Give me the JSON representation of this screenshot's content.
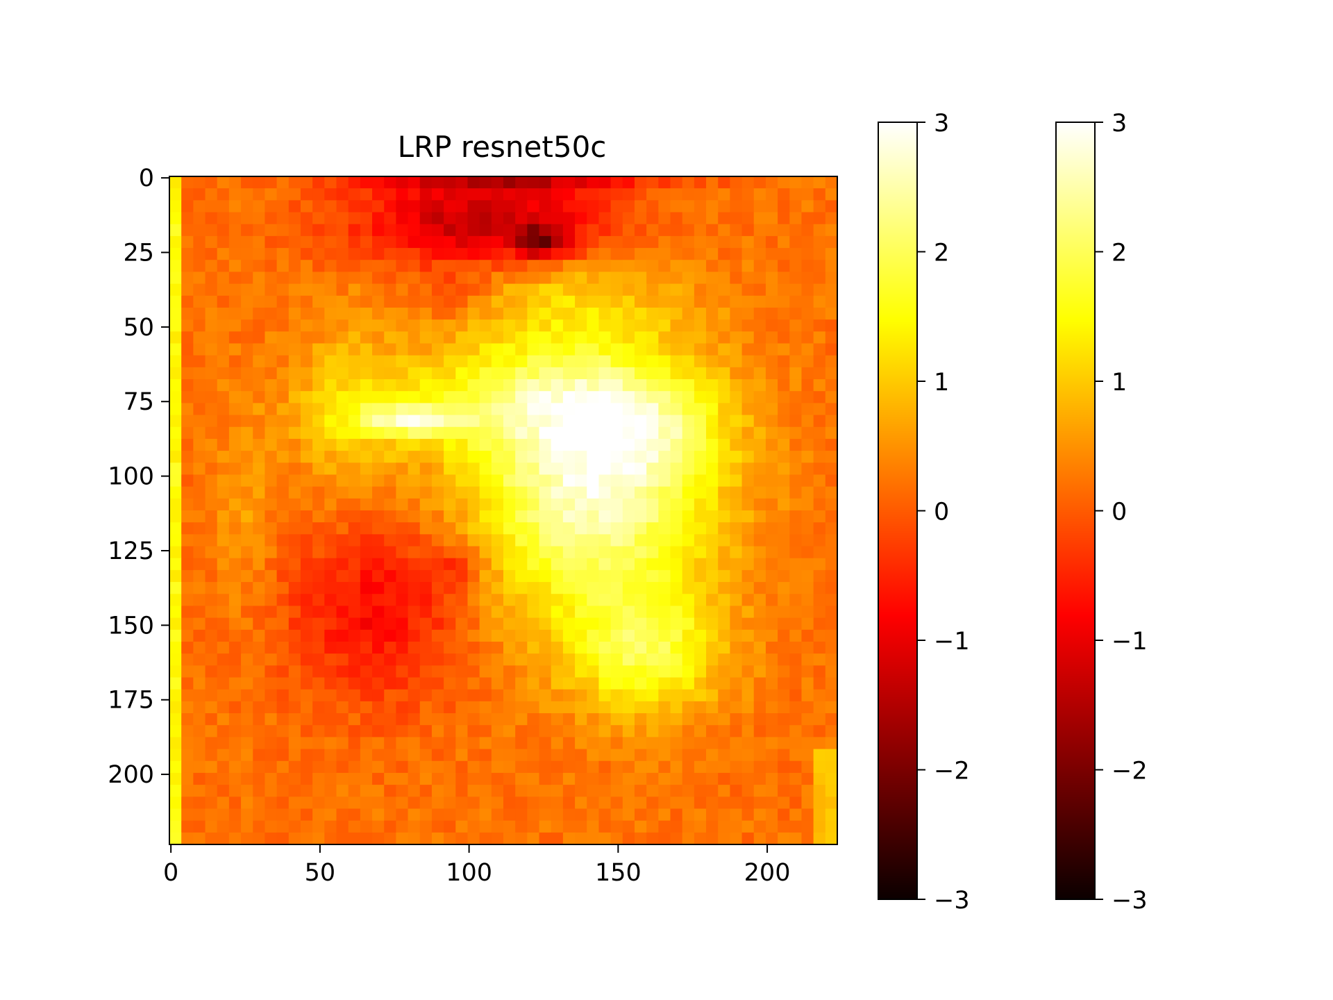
{
  "chart_data": {
    "type": "heatmap",
    "title": "LRP resnet50c",
    "xlabel": "",
    "ylabel": "",
    "image_size": [
      224,
      224
    ],
    "grid": false,
    "colormap": "hot",
    "value_range": [
      -3,
      3
    ],
    "x_ticks": [
      0,
      50,
      100,
      150,
      200
    ],
    "y_ticks": [
      0,
      25,
      50,
      75,
      100,
      125,
      150,
      175,
      200
    ],
    "colorbar_ticks": [
      3,
      2,
      1,
      0,
      -1,
      -2,
      -3
    ],
    "colorbars": [
      {
        "ticks": [
          3,
          2,
          1,
          0,
          -1,
          -2,
          -3
        ],
        "tick_labels": [
          "3",
          "2",
          "1",
          "0",
          "−1",
          "−2",
          "−3"
        ]
      },
      {
        "ticks": [
          3,
          2,
          1,
          0,
          -1,
          -2,
          -3
        ],
        "tick_labels": [
          "3",
          "2",
          "1",
          "0",
          "−1",
          "−2",
          "−3"
        ]
      }
    ],
    "x_tick_labels": [
      "0",
      "50",
      "100",
      "150",
      "200"
    ],
    "y_tick_labels": [
      "0",
      "25",
      "50",
      "75",
      "100",
      "125",
      "150",
      "175",
      "200"
    ],
    "background_value": 0.2,
    "regions": [
      {
        "cx": 142,
        "cy": 100,
        "rx": 48,
        "ry": 55,
        "value": 2.6
      },
      {
        "cx": 165,
        "cy": 85,
        "rx": 25,
        "ry": 18,
        "value": 0.6
      },
      {
        "cx": 80,
        "cy": 82,
        "rx": 20,
        "ry": 6,
        "value": 1.6
      },
      {
        "cx": 110,
        "cy": 75,
        "rx": 60,
        "ry": 20,
        "value": 1.0
      },
      {
        "cx": 160,
        "cy": 160,
        "rx": 30,
        "ry": 25,
        "value": 1.4
      },
      {
        "cx": 60,
        "cy": 80,
        "rx": 22,
        "ry": 35,
        "value": 0.7
      },
      {
        "cx": 120,
        "cy": 40,
        "rx": 55,
        "ry": 15,
        "value": 0.5
      },
      {
        "cx": 70,
        "cy": 145,
        "rx": 35,
        "ry": 35,
        "value": -1.0
      },
      {
        "cx": 95,
        "cy": 130,
        "rx": 12,
        "ry": 10,
        "value": -0.6
      },
      {
        "cx": 105,
        "cy": 15,
        "rx": 50,
        "ry": 18,
        "value": -1.6
      },
      {
        "cx": 125,
        "cy": 22,
        "rx": 10,
        "ry": 6,
        "value": -1.6
      },
      {
        "cx": 115,
        "cy": 2,
        "rx": 60,
        "ry": 4,
        "value": -1.0
      },
      {
        "cx": 95,
        "cy": 40,
        "rx": 20,
        "ry": 10,
        "value": -0.6
      },
      {
        "cx": 25,
        "cy": 110,
        "rx": 12,
        "ry": 40,
        "value": 0.4
      }
    ],
    "left_edge_value": 2.0,
    "bottom_right_edge_value": 1.0
  }
}
